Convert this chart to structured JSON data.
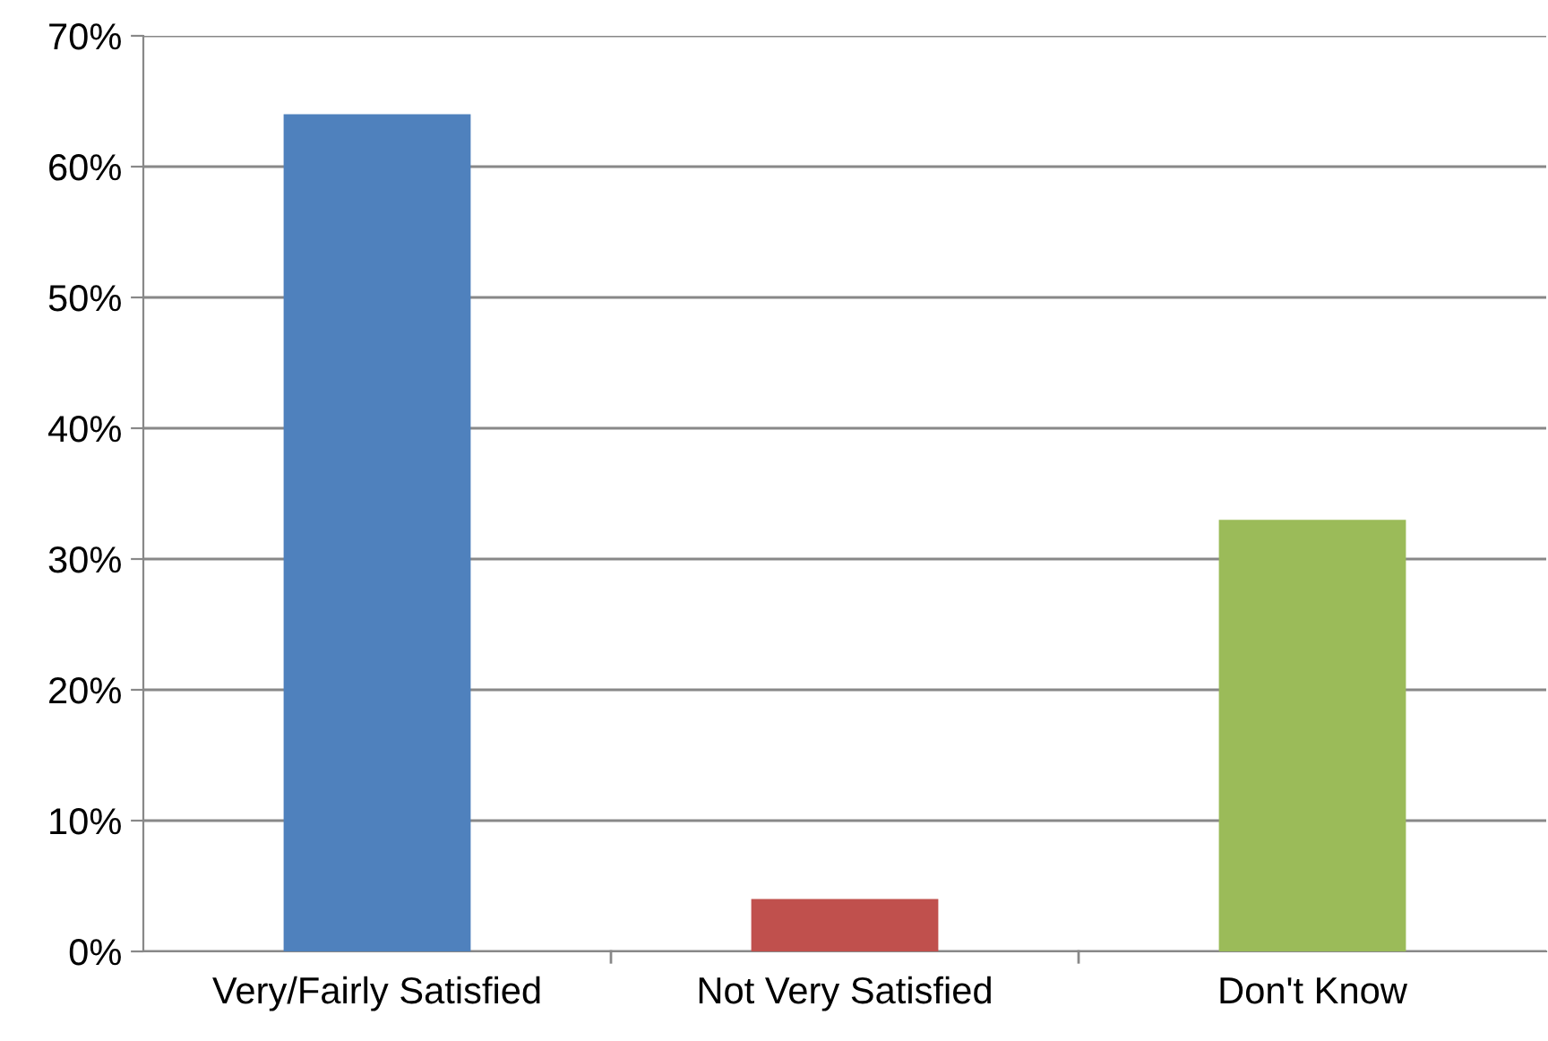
{
  "chart_data": {
    "type": "bar",
    "categories": [
      "Very/Fairly Satisfied",
      "Not Very Satisfied",
      "Don't Know"
    ],
    "values": [
      64,
      4,
      33
    ],
    "colors": [
      "#4f81bd",
      "#c0504d",
      "#9bbb59"
    ],
    "ylim": [
      0,
      70
    ],
    "yticks": [
      {
        "value": 0,
        "label": "0%"
      },
      {
        "value": 10,
        "label": "10%"
      },
      {
        "value": 20,
        "label": "20%"
      },
      {
        "value": 30,
        "label": "30%"
      },
      {
        "value": 40,
        "label": "40%"
      },
      {
        "value": 50,
        "label": "50%"
      },
      {
        "value": 60,
        "label": "60%"
      },
      {
        "value": 70,
        "label": "70%"
      }
    ],
    "grid": "y",
    "legend": false
  }
}
